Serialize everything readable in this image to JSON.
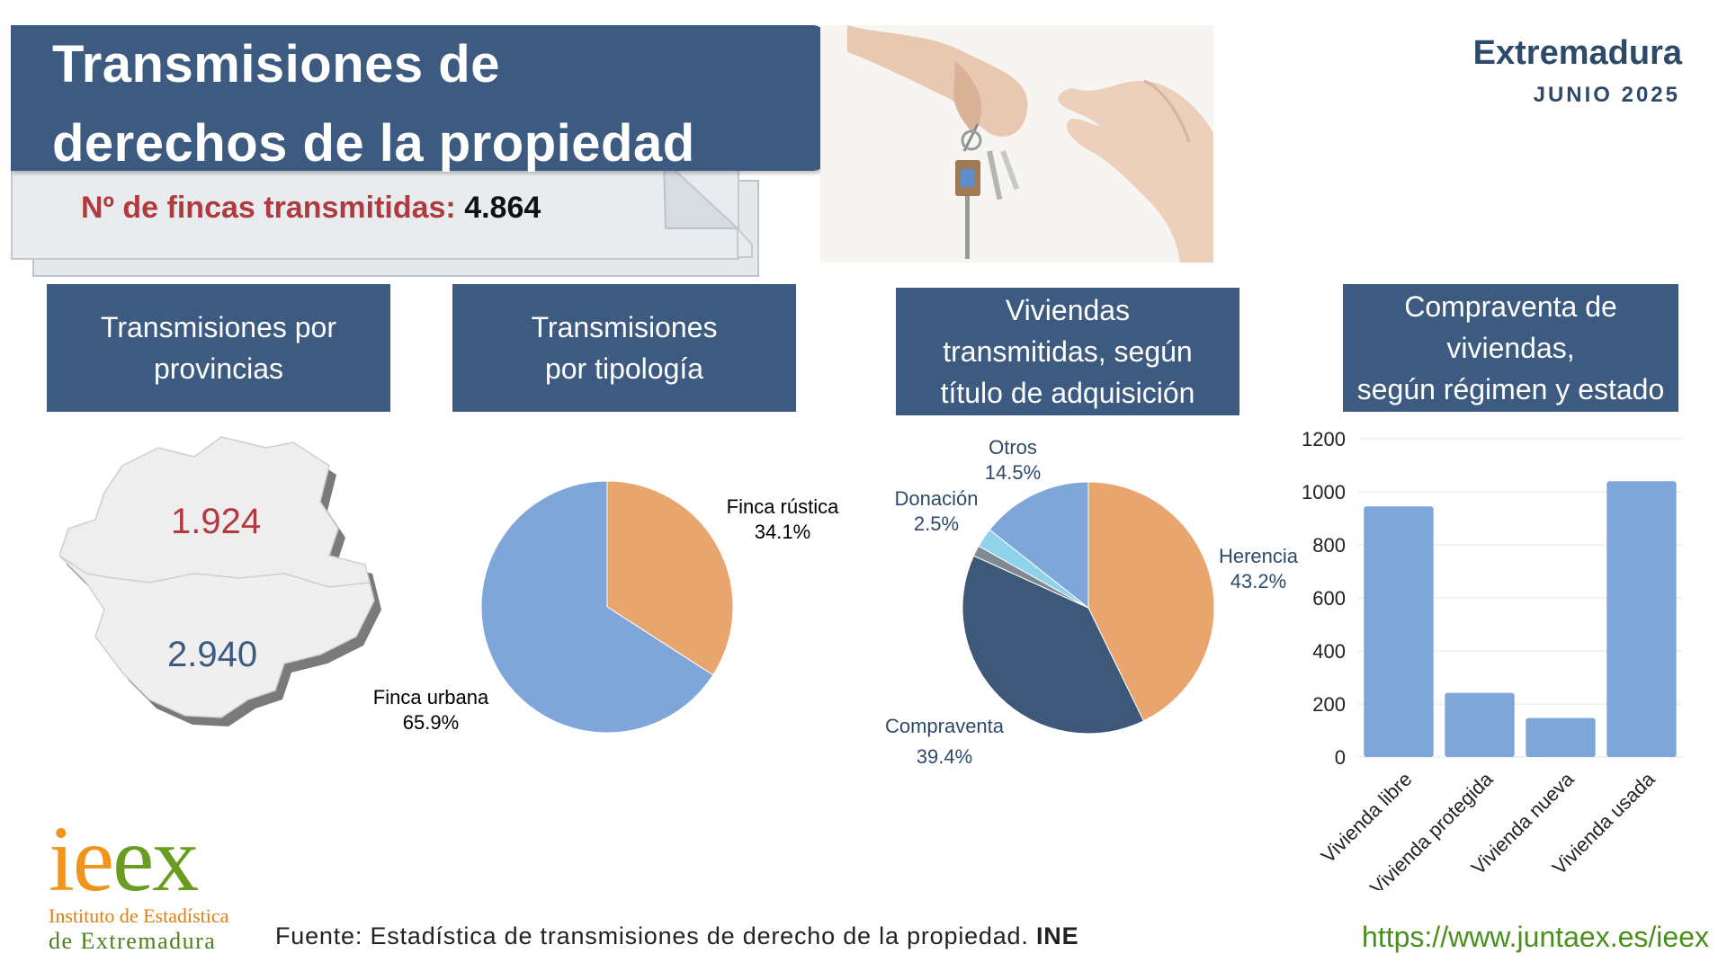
{
  "header": {
    "title_line1": "Transmisiones de",
    "title_line2": "derechos de la propiedad",
    "fincas_label": "Nº de fincas transmitidas:",
    "fincas_value": "4.864",
    "region": "Extremadura",
    "date": "JUNIO 2025"
  },
  "panels": {
    "provincias": {
      "line1": "Transmisiones por",
      "line2": "provincias"
    },
    "tipologia": {
      "line1": "Transmisiones",
      "line2": "por tipología"
    },
    "titulo": {
      "line1": "Viviendas",
      "line2": "transmitidas, según",
      "line3": "título de adquisición"
    },
    "regimen": {
      "line1": "Compraventa de",
      "line2": "viviendas,",
      "line3": "según régimen y estado"
    }
  },
  "map": {
    "caceres_value": "1.924",
    "badajoz_value": "2.940",
    "caceres_color": "#b03a3e",
    "badajoz_color": "#3d5a80"
  },
  "footer": {
    "logo_text": "ieex",
    "logo_sub1": "Instituto de Estadística",
    "logo_sub2": "de Extremadura",
    "source_prefix": "Fuente: Estadística de transmisiones de derecho de la propiedad.",
    "source_org": "INE",
    "url": "https://www.juntaex.es/ieex"
  },
  "colors": {
    "header_blue": "#3d5a80",
    "light_blue": "#7ea6d8",
    "orange": "#e8a66e",
    "dark_blue": "#3d5878",
    "gray": "#808890",
    "cyan": "#8fd3ea",
    "green": "#4a8f1e"
  },
  "chart_data": [
    {
      "type": "pie",
      "slices": [
        {
          "label": "Finca rústica",
          "value": 34.1,
          "display": "34.1%",
          "color": "#e8a66e"
        },
        {
          "label": "Finca urbana",
          "value": 65.9,
          "display": "65.9%",
          "color": "#7ea6d8"
        }
      ]
    },
    {
      "type": "pie",
      "slices": [
        {
          "label": "Herencia",
          "value": 43.2,
          "display": "43.2%",
          "color": "#e8a66e"
        },
        {
          "label": "Compraventa",
          "value": 39.4,
          "display": "39.4%",
          "color": "#3d5878"
        },
        {
          "label": "",
          "value": 1.4,
          "display": "",
          "color": "#808890"
        },
        {
          "label": "Donación",
          "value": 2.5,
          "display": "2.5%",
          "color": "#8fd3ea"
        },
        {
          "label": "Otros",
          "value": 14.5,
          "display": "14.5%",
          "color": "#7ea6d8"
        }
      ]
    },
    {
      "type": "bar",
      "categories": [
        "Vivienda libre",
        "Vivienda protegida",
        "Vivienda nueva",
        "Vivienda usada"
      ],
      "values": [
        945,
        242,
        147,
        1040
      ],
      "yticks": [
        "0",
        "200",
        "400",
        "600",
        "800",
        "1000",
        "1200"
      ],
      "ylim": [
        0,
        1200
      ],
      "grid": true,
      "color": "#7ea6d8"
    }
  ]
}
